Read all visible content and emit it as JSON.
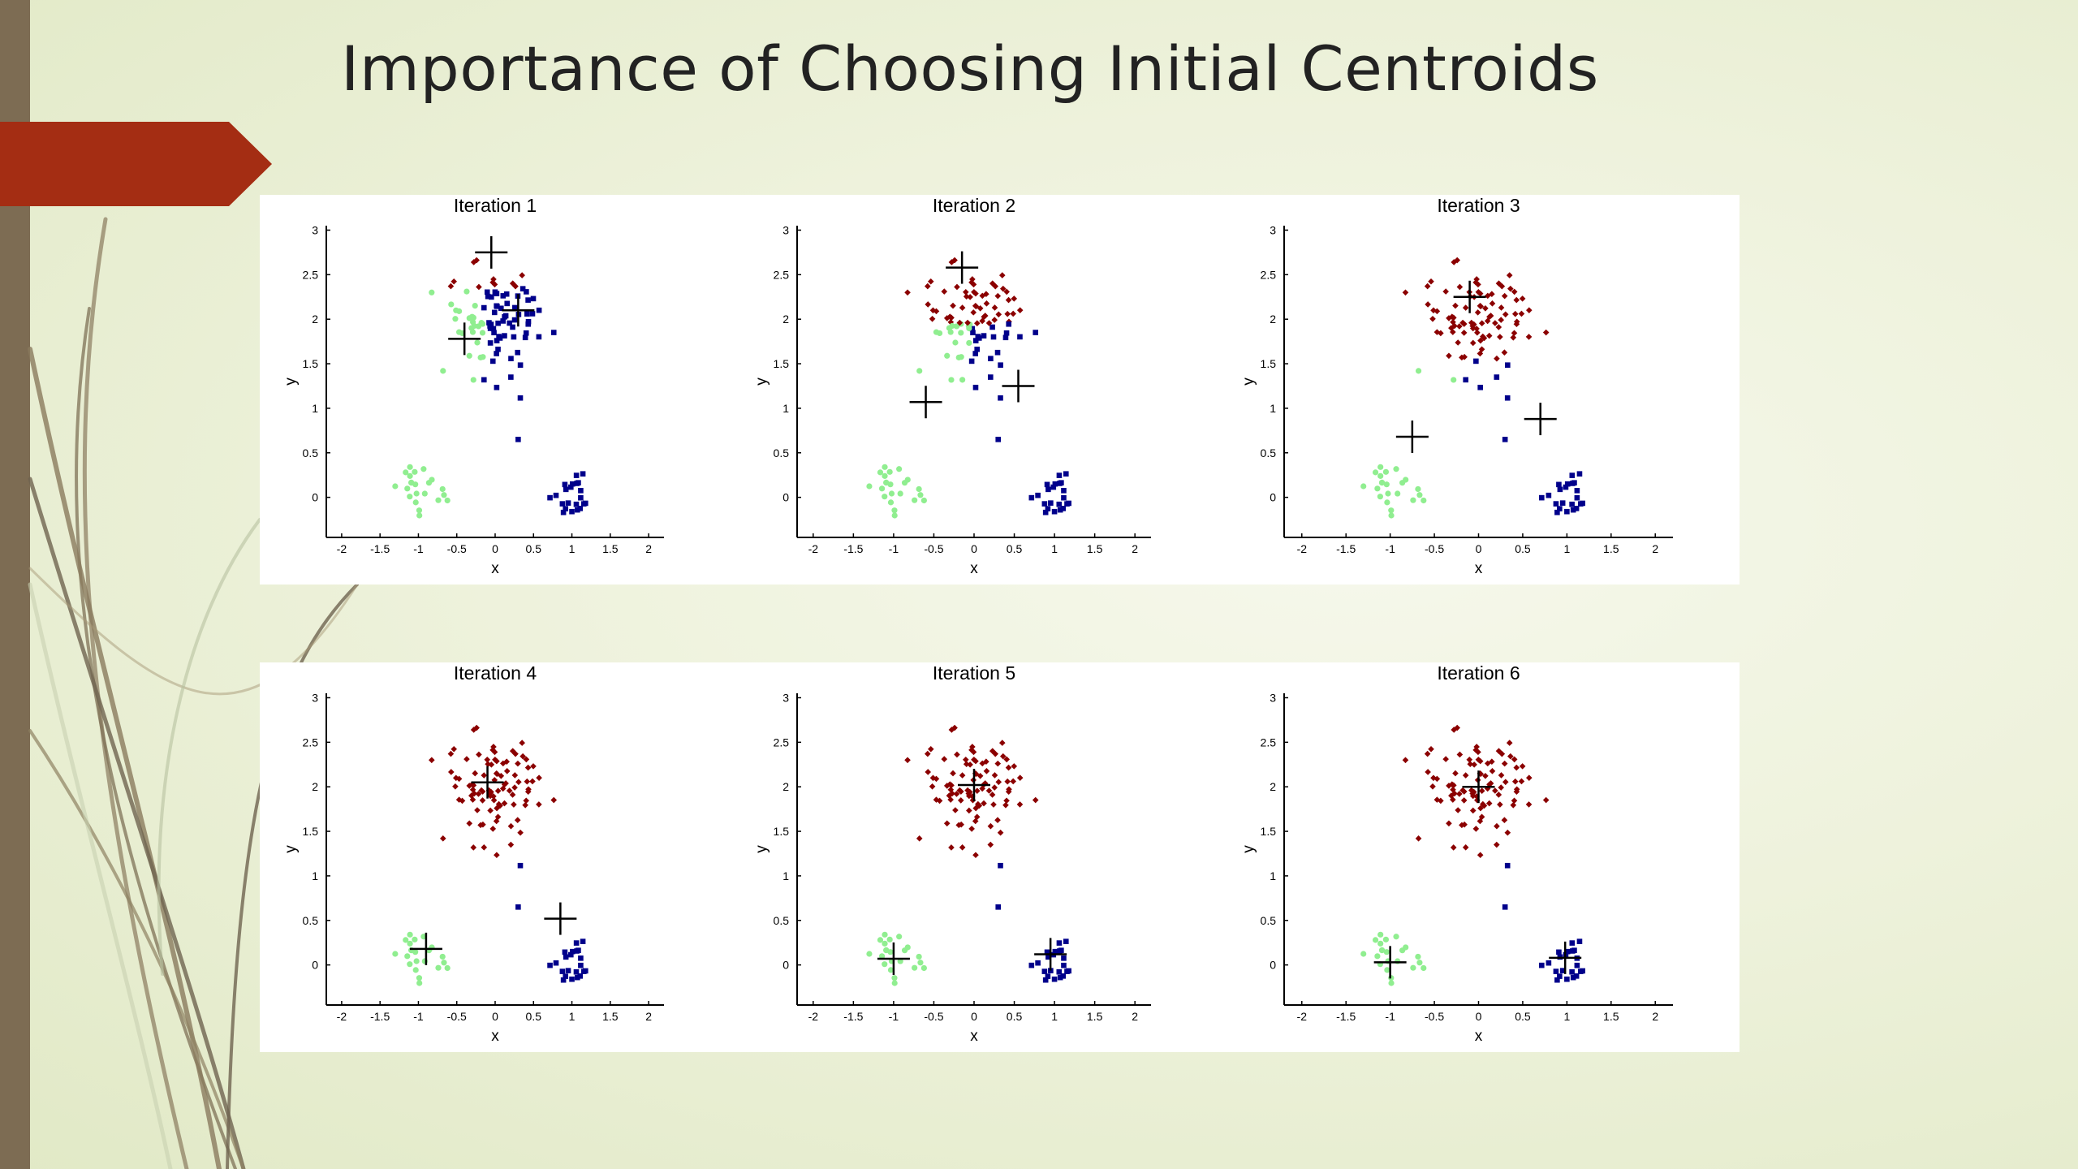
{
  "slide": {
    "title": "Importance of Choosing Initial Centroids"
  },
  "colors": {
    "accent_arrow": "#a42d13",
    "sidebar": "#7d6c53",
    "cluster_red": "#8b0000",
    "cluster_blue": "#00008b",
    "cluster_green": "#90ee90",
    "centroid_marker": "#000000"
  },
  "chart_data": [
    {
      "type": "scatter",
      "title": "Iteration 1",
      "xlabel": "x",
      "ylabel": "y",
      "xlim": [
        -2.2,
        2.2
      ],
      "ylim": [
        -0.45,
        3.05
      ],
      "xticks": [
        "-2",
        "-1.5",
        "-1",
        "-0.5",
        "0",
        "0.5",
        "1",
        "1.5",
        "2"
      ],
      "yticks": [
        "0",
        "0.5",
        "1",
        "1.5",
        "2",
        "2.5",
        "3"
      ],
      "clusters": {
        "red": "top",
        "blue": "top-right + bottom-right",
        "green": "top-left + bottom-left"
      },
      "centroids": [
        [
          -0.05,
          2.75
        ],
        [
          0.3,
          2.1
        ],
        [
          -0.4,
          1.78
        ]
      ]
    },
    {
      "type": "scatter",
      "title": "Iteration 2",
      "xlabel": "x",
      "ylabel": "y",
      "xlim": [
        -2.2,
        2.2
      ],
      "ylim": [
        -0.45,
        3.05
      ],
      "xticks": [
        "-2",
        "-1.5",
        "-1",
        "-0.5",
        "0",
        "0.5",
        "1",
        "1.5",
        "2"
      ],
      "yticks": [
        "0",
        "0.5",
        "1",
        "1.5",
        "2",
        "2.5",
        "3"
      ],
      "centroids": [
        [
          -0.15,
          2.58
        ],
        [
          0.55,
          1.25
        ],
        [
          -0.6,
          1.07
        ]
      ]
    },
    {
      "type": "scatter",
      "title": "Iteration 3",
      "xlabel": "x",
      "ylabel": "y",
      "xlim": [
        -2.2,
        2.2
      ],
      "ylim": [
        -0.45,
        3.05
      ],
      "xticks": [
        "-2",
        "-1.5",
        "-1",
        "-0.5",
        "0",
        "0.5",
        "1",
        "1.5",
        "2"
      ],
      "yticks": [
        "0",
        "0.5",
        "1",
        "1.5",
        "2",
        "2.5",
        "3"
      ],
      "centroids": [
        [
          -0.1,
          2.25
        ],
        [
          0.7,
          0.88
        ],
        [
          -0.75,
          0.68
        ]
      ]
    },
    {
      "type": "scatter",
      "title": "Iteration 4",
      "xlabel": "x",
      "ylabel": "y",
      "xlim": [
        -2.2,
        2.2
      ],
      "ylim": [
        -0.45,
        3.05
      ],
      "xticks": [
        "-2",
        "-1.5",
        "-1",
        "-0.5",
        "0",
        "0.5",
        "1",
        "1.5",
        "2"
      ],
      "yticks": [
        "0",
        "0.5",
        "1",
        "1.5",
        "2",
        "2.5",
        "3"
      ],
      "centroids": [
        [
          -0.1,
          2.05
        ],
        [
          0.85,
          0.52
        ],
        [
          -0.9,
          0.18
        ]
      ]
    },
    {
      "type": "scatter",
      "title": "Iteration 5",
      "xlabel": "x",
      "ylabel": "y",
      "xlim": [
        -2.2,
        2.2
      ],
      "ylim": [
        -0.45,
        3.05
      ],
      "xticks": [
        "-2",
        "-1.5",
        "-1",
        "-0.5",
        "0",
        "0.5",
        "1",
        "1.5",
        "2"
      ],
      "yticks": [
        "0",
        "0.5",
        "1",
        "1.5",
        "2",
        "2.5",
        "3"
      ],
      "centroids": [
        [
          0.0,
          2.02
        ],
        [
          0.95,
          0.12
        ],
        [
          -1.0,
          0.07
        ]
      ]
    },
    {
      "type": "scatter",
      "title": "Iteration 6",
      "xlabel": "x",
      "ylabel": "y",
      "xlim": [
        -2.2,
        2.2
      ],
      "ylim": [
        -0.45,
        3.05
      ],
      "xticks": [
        "-2",
        "-1.5",
        "-1",
        "-0.5",
        "0",
        "0.5",
        "1",
        "1.5",
        "2"
      ],
      "yticks": [
        "0",
        "0.5",
        "1",
        "1.5",
        "2",
        "2.5",
        "3"
      ],
      "centroids": [
        [
          0.0,
          2.0
        ],
        [
          0.98,
          0.08
        ],
        [
          -1.0,
          0.03
        ]
      ]
    }
  ]
}
